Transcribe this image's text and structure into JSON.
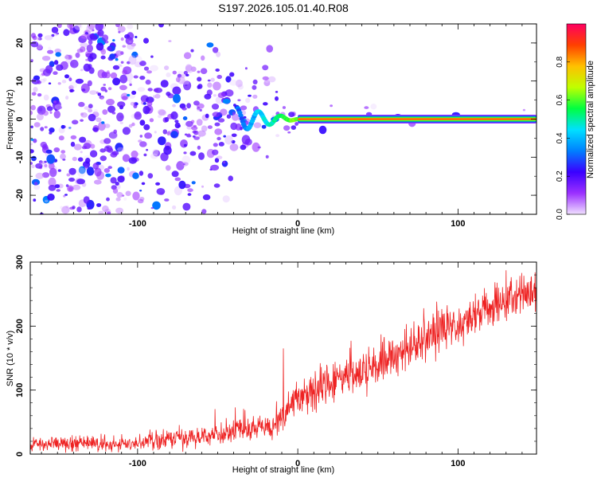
{
  "title": "S197.2026.105.01.40.R08",
  "chart_data": [
    {
      "type": "heatmap",
      "name": "spectrogram",
      "xlabel": "Height of straight line (km)",
      "ylabel": "Frequency (Hz)",
      "xlim": [
        -167,
        149
      ],
      "ylim": [
        -25,
        25
      ],
      "xticks": [
        -100,
        0,
        100
      ],
      "yticks": [
        -20,
        -10,
        0,
        10,
        20
      ],
      "line": {
        "y": 0,
        "x_start": 0,
        "x_end": 149,
        "amplitude": 0.9
      },
      "colorbar": {
        "label": "Normalized spectral amplitude",
        "range": [
          0,
          1
        ],
        "ticks": [
          "0.0",
          "0.2",
          "0.4",
          "0.6",
          "0.8"
        ],
        "colors": [
          "#f0e0ff",
          "#9b30ff",
          "#3a00ff",
          "#0080ff",
          "#00e0ff",
          "#00ff40",
          "#c0ff00",
          "#ffc000",
          "#ff4000",
          "#ff0060"
        ]
      },
      "notes": "Scattered low-amplitude energy dominates for heights below about -30 km; a narrow band at 0 Hz holds amplitude near 0.9 for heights above 0 km."
    },
    {
      "type": "line",
      "name": "snr",
      "xlabel": "Height of straight line (km)",
      "ylabel": "SNR (10 * v/v)",
      "xlim": [
        -167,
        149
      ],
      "ylim": [
        0,
        300
      ],
      "xticks": [
        -100,
        0,
        100
      ],
      "yticks": [
        0,
        100,
        200,
        300
      ],
      "color": "#ee2222",
      "trend_points": [
        {
          "x": -167,
          "y": 15
        },
        {
          "x": -100,
          "y": 18
        },
        {
          "x": -70,
          "y": 25
        },
        {
          "x": -40,
          "y": 35
        },
        {
          "x": -15,
          "y": 45
        },
        {
          "x": -10,
          "y": 55
        },
        {
          "x": 0,
          "y": 85
        },
        {
          "x": 20,
          "y": 110
        },
        {
          "x": 50,
          "y": 140
        },
        {
          "x": 80,
          "y": 180
        },
        {
          "x": 110,
          "y": 215
        },
        {
          "x": 130,
          "y": 240
        },
        {
          "x": 149,
          "y": 255
        }
      ],
      "noise": [
        {
          "x": -167,
          "amp": 8
        },
        {
          "x": -20,
          "amp": 18
        },
        {
          "x": 0,
          "amp": 25
        },
        {
          "x": 149,
          "amp": 30
        }
      ],
      "spike": {
        "x": -9,
        "y": 165
      }
    }
  ]
}
